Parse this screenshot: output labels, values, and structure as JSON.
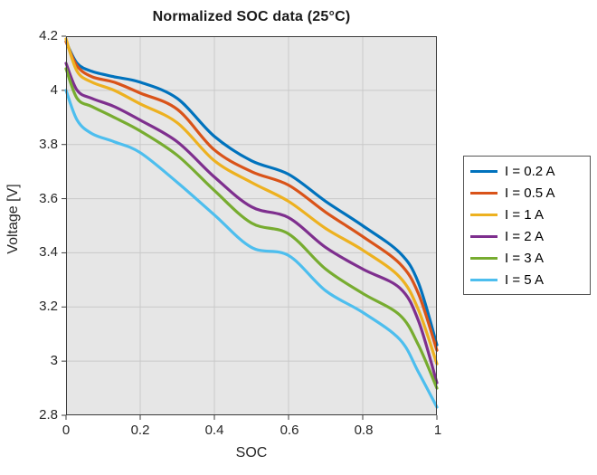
{
  "title": "Normalized SOC data (25°C)",
  "axes": {
    "xlabel": "SOC",
    "ylabel": "Voltage [V]",
    "x_tick_labels": [
      "0",
      "0.2",
      "0.4",
      "0.6",
      "0.8",
      "1"
    ],
    "y_tick_labels": [
      "4.2",
      "4",
      "3.8",
      "3.6",
      "3.4",
      "3.2",
      "3",
      "2.8"
    ]
  },
  "legend": {
    "items": [
      {
        "label": "I = 0.2 A",
        "color": "#0072BD"
      },
      {
        "label": "I = 0.5 A",
        "color": "#D95319"
      },
      {
        "label": "I = 1 A",
        "color": "#EDB120"
      },
      {
        "label": "I = 2 A",
        "color": "#7E2F8E"
      },
      {
        "label": "I = 3 A",
        "color": "#77AC30"
      },
      {
        "label": "I = 5 A",
        "color": "#4DBEEE"
      }
    ]
  },
  "colors": {
    "plot_background": "#e6e6e6",
    "grid_line": "#c9c9c9",
    "axis_box": "#3b3b3b",
    "text": "#262626"
  },
  "chart_data": {
    "type": "line",
    "title": "Normalized SOC data (25°C)",
    "xlabel": "SOC",
    "ylabel": "Voltage [V]",
    "xlim": [
      0,
      1
    ],
    "ylim": [
      2.8,
      4.2
    ],
    "x_ticks": [
      0,
      0.2,
      0.4,
      0.6,
      0.8,
      1
    ],
    "y_ticks": [
      2.8,
      3.0,
      3.2,
      3.4,
      3.6,
      3.8,
      4.0,
      4.2
    ],
    "grid": true,
    "legend_position": "outside-right",
    "x": [
      0,
      0.03,
      0.07,
      0.13,
      0.2,
      0.3,
      0.4,
      0.5,
      0.6,
      0.7,
      0.8,
      0.9,
      0.95,
      1.0
    ],
    "series": [
      {
        "name": "I = 0.2 A",
        "color": "#0072BD",
        "values": [
          4.18,
          4.1,
          4.07,
          4.05,
          4.03,
          3.97,
          3.83,
          3.74,
          3.69,
          3.59,
          3.5,
          3.4,
          3.29,
          3.06
        ]
      },
      {
        "name": "I = 0.5 A",
        "color": "#D95319",
        "values": [
          4.18,
          4.09,
          4.05,
          4.03,
          3.99,
          3.93,
          3.78,
          3.7,
          3.65,
          3.55,
          3.46,
          3.36,
          3.25,
          3.04
        ]
      },
      {
        "name": "I = 1 A",
        "color": "#EDB120",
        "values": [
          4.19,
          4.07,
          4.03,
          4.0,
          3.95,
          3.88,
          3.74,
          3.66,
          3.59,
          3.49,
          3.41,
          3.31,
          3.19,
          2.99
        ]
      },
      {
        "name": "I = 2 A",
        "color": "#7E2F8E",
        "values": [
          4.1,
          4.0,
          3.97,
          3.94,
          3.89,
          3.81,
          3.68,
          3.57,
          3.53,
          3.42,
          3.34,
          3.27,
          3.15,
          2.92
        ]
      },
      {
        "name": "I = 3 A",
        "color": "#77AC30",
        "values": [
          4.08,
          3.97,
          3.94,
          3.9,
          3.85,
          3.76,
          3.63,
          3.51,
          3.47,
          3.34,
          3.25,
          3.17,
          3.06,
          2.9
        ]
      },
      {
        "name": "I = 5 A",
        "color": "#4DBEEE",
        "values": [
          4.0,
          3.89,
          3.84,
          3.81,
          3.77,
          3.66,
          3.54,
          3.42,
          3.39,
          3.26,
          3.18,
          3.08,
          2.96,
          2.83
        ]
      }
    ]
  }
}
